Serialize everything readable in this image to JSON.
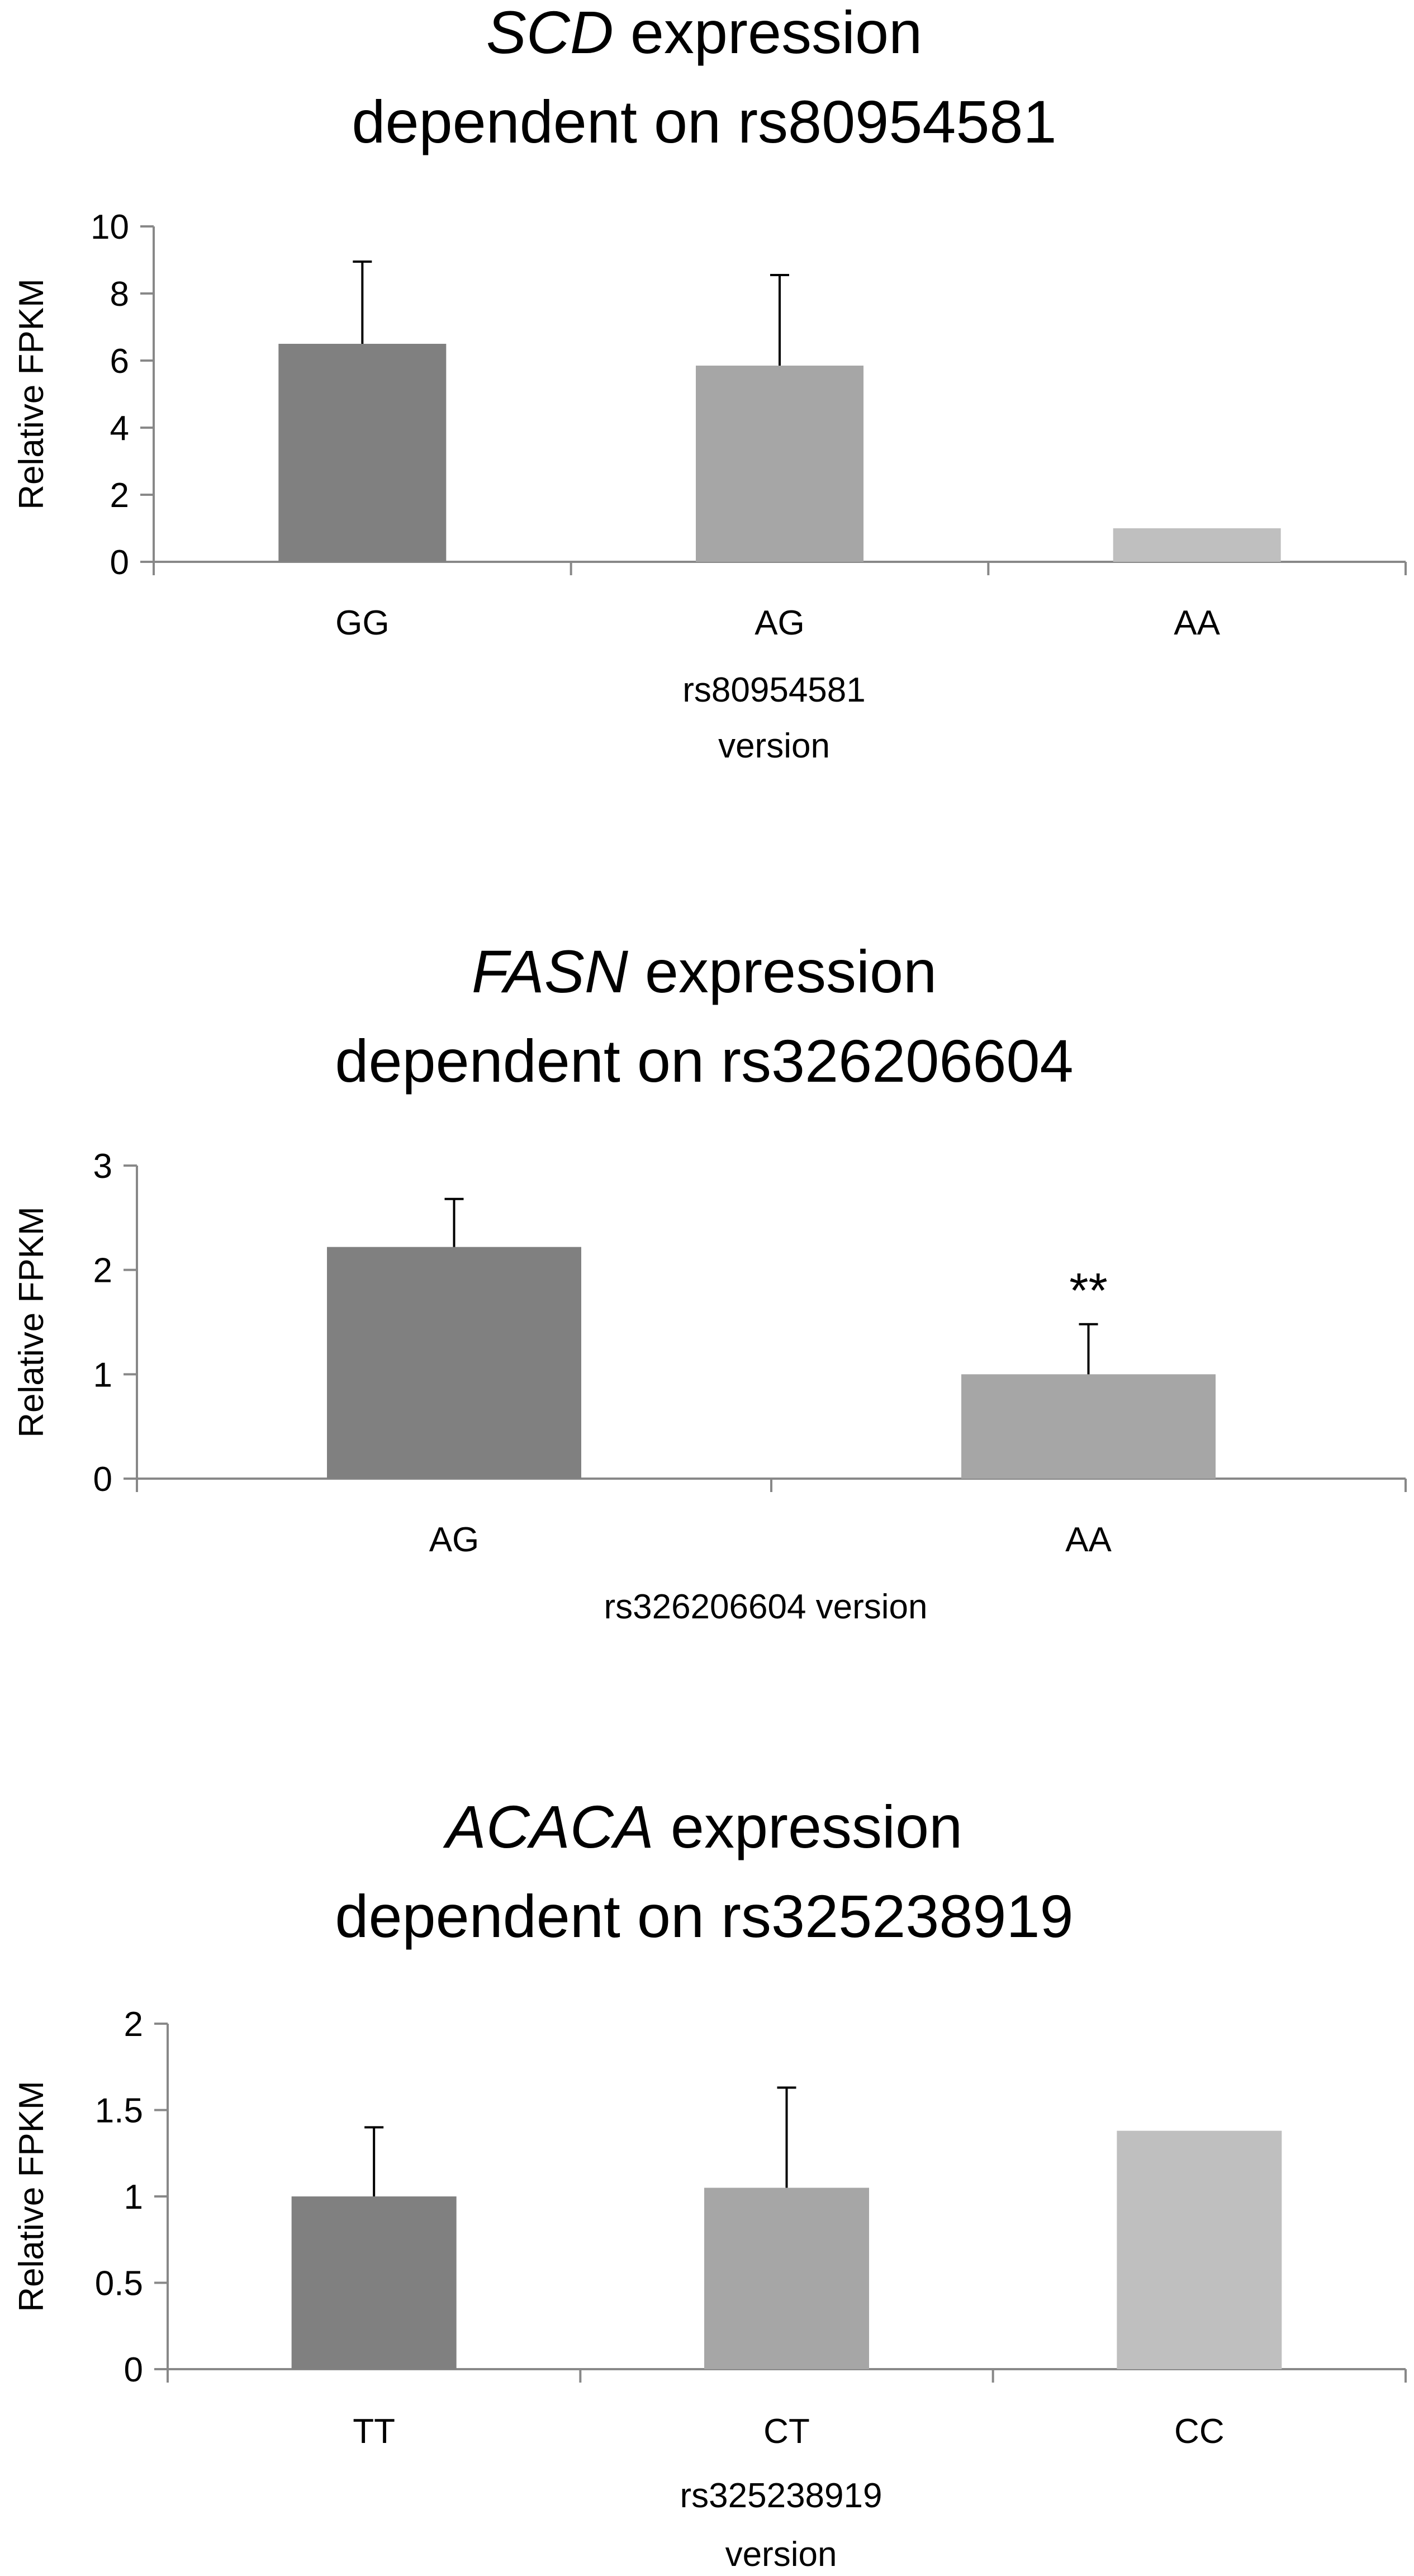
{
  "chart_data": [
    {
      "type": "bar",
      "title_italic": "SCD",
      "title_rest": " expression",
      "title_line2": "dependent on rs80954581",
      "categories": [
        "GG",
        "AG",
        "AA"
      ],
      "values": [
        6.5,
        5.85,
        1.0
      ],
      "errors": [
        2.45,
        2.7,
        null
      ],
      "colors": [
        "#808080",
        "#a6a6a6",
        "#bfbfbf"
      ],
      "ylabel": "Relative FPKM",
      "xlabel_lines": [
        "rs80954581",
        "version"
      ],
      "ylim": [
        0,
        10
      ],
      "yticks": [
        0,
        2,
        4,
        6,
        8,
        10
      ],
      "ytick_labels": [
        "0",
        "2",
        "4",
        "6",
        "8",
        "10"
      ],
      "annotations": [],
      "grid": false,
      "legend": "none"
    },
    {
      "type": "bar",
      "title_italic": "FASN",
      "title_rest": " expression",
      "title_line2": "dependent on rs326206604",
      "categories": [
        "AG",
        "AA"
      ],
      "values": [
        2.22,
        1.0
      ],
      "errors": [
        0.46,
        0.48
      ],
      "colors": [
        "#808080",
        "#a6a6a6"
      ],
      "ylabel": "Relative FPKM",
      "xlabel_lines": [
        "rs326206604 version"
      ],
      "ylim": [
        0,
        3
      ],
      "yticks": [
        0,
        1,
        2,
        3
      ],
      "ytick_labels": [
        "0",
        "1",
        "2",
        "3"
      ],
      "annotations": [
        {
          "text": "**",
          "category": "AA"
        }
      ],
      "grid": false,
      "legend": "none"
    },
    {
      "type": "bar",
      "title_italic": "ACACA",
      "title_rest": " expression",
      "title_line2": "dependent on rs325238919",
      "categories": [
        "TT",
        "CT",
        "CC"
      ],
      "values": [
        1.0,
        1.05,
        1.38
      ],
      "errors": [
        0.4,
        0.58,
        null
      ],
      "colors": [
        "#808080",
        "#a6a6a6",
        "#bfbfbf"
      ],
      "ylabel": "Relative FPKM",
      "xlabel_lines": [
        "rs325238919",
        "version"
      ],
      "ylim": [
        0,
        2
      ],
      "yticks": [
        0,
        0.5,
        1,
        1.5,
        2
      ],
      "ytick_labels": [
        "0",
        "0.5",
        "1",
        "1.5",
        "2"
      ],
      "annotations": [],
      "grid": false,
      "legend": "none"
    }
  ]
}
